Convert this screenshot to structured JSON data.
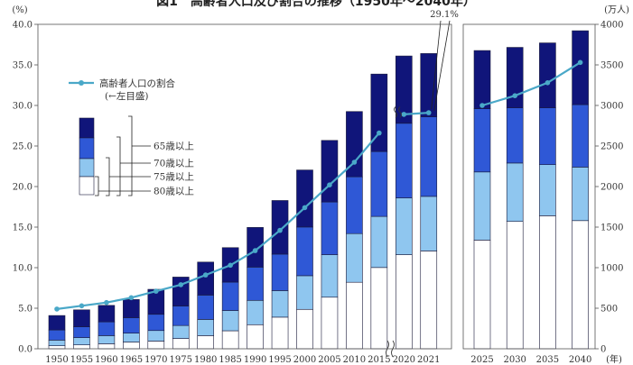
{
  "page_title": "図1　高齢者人口及び割合の推移（1950年〜2040年）",
  "chart_data": {
    "type": "bar",
    "stacked": true,
    "left_axis": {
      "unit": "(%)",
      "ylim": [
        0,
        40
      ],
      "ticks": [
        "0.0",
        "5.0",
        "10.0",
        "15.0",
        "20.0",
        "25.0",
        "30.0",
        "35.0",
        "40.0"
      ]
    },
    "right_axis": {
      "unit": "(万人)",
      "ylim": [
        0,
        4000
      ],
      "ticks": [
        "0",
        "500",
        "1000",
        "1500",
        "2000",
        "2500",
        "3000",
        "3500",
        "4000"
      ]
    },
    "x_unit": "(年)",
    "colors": {
      "age80": "#ffffff",
      "age75": "#8fc6ef",
      "age70": "#2f58d6",
      "age65": "#10157a",
      "line": "#4aa8c8"
    },
    "panels": [
      {
        "categories": [
          "1950",
          "1955",
          "1960",
          "1965",
          "1970",
          "1975",
          "1980",
          "1985",
          "1990",
          "1995",
          "2000",
          "2005",
          "2010",
          "2015",
          "2020",
          "2021"
        ],
        "series": [
          {
            "name": "80歳以上",
            "values": [
              37,
              48,
              62,
              83,
              95,
              127,
              162,
              222,
              297,
              390,
              486,
              636,
              820,
              1002,
              1160,
              1206
            ]
          },
          {
            "name": "75歳以上",
            "values": [
              70,
              90,
              100,
              110,
              130,
              160,
              200,
              250,
              300,
              327,
              415,
              524,
              600,
              630,
              700,
              673
            ]
          },
          {
            "name": "70歳以上",
            "values": [
              125,
              133,
              170,
              190,
              200,
              240,
              300,
              350,
              410,
              450,
              600,
              650,
              700,
              800,
              920,
              980
            ]
          },
          {
            "name": "65歳以上",
            "values": [
              178,
              209,
              203,
              224,
              308,
              357,
              407,
              425,
              489,
              661,
              703,
              759,
              805,
              955,
              830,
              781
            ]
          }
        ],
        "line": {
          "name": "高齢者人口の割合",
          "values": [
            4.9,
            5.3,
            5.7,
            6.3,
            7.1,
            7.9,
            9.1,
            10.3,
            12.1,
            14.6,
            17.4,
            20.2,
            23.0,
            26.6,
            null,
            null
          ]
        },
        "line_tail": {
          "values": [
            28.9,
            29.1
          ]
        },
        "break_label": "",
        "annotation": "29.1%"
      },
      {
        "categories": [
          "2025",
          "2030",
          "2035",
          "2040"
        ],
        "series": [
          {
            "name": "80歳以上",
            "values": [
              1340,
              1570,
              1640,
              1580
            ]
          },
          {
            "name": "75歳以上",
            "values": [
              840,
              720,
              630,
              660
            ]
          },
          {
            "name": "70歳以上",
            "values": [
              780,
              680,
              700,
              770
            ]
          },
          {
            "name": "65歳以上",
            "values": [
              717,
              746,
              801,
              911
            ]
          }
        ],
        "line": {
          "name": "高齢者人口の割合",
          "values": [
            30.0,
            31.2,
            32.8,
            35.3
          ]
        }
      }
    ],
    "legend": {
      "line_label": "高齢者人口の割合",
      "line_sub": "(←左目盛)",
      "bracket_labels": [
        "65歳以上",
        "70歳以上",
        "75歳以上",
        "80歳以上"
      ]
    }
  }
}
